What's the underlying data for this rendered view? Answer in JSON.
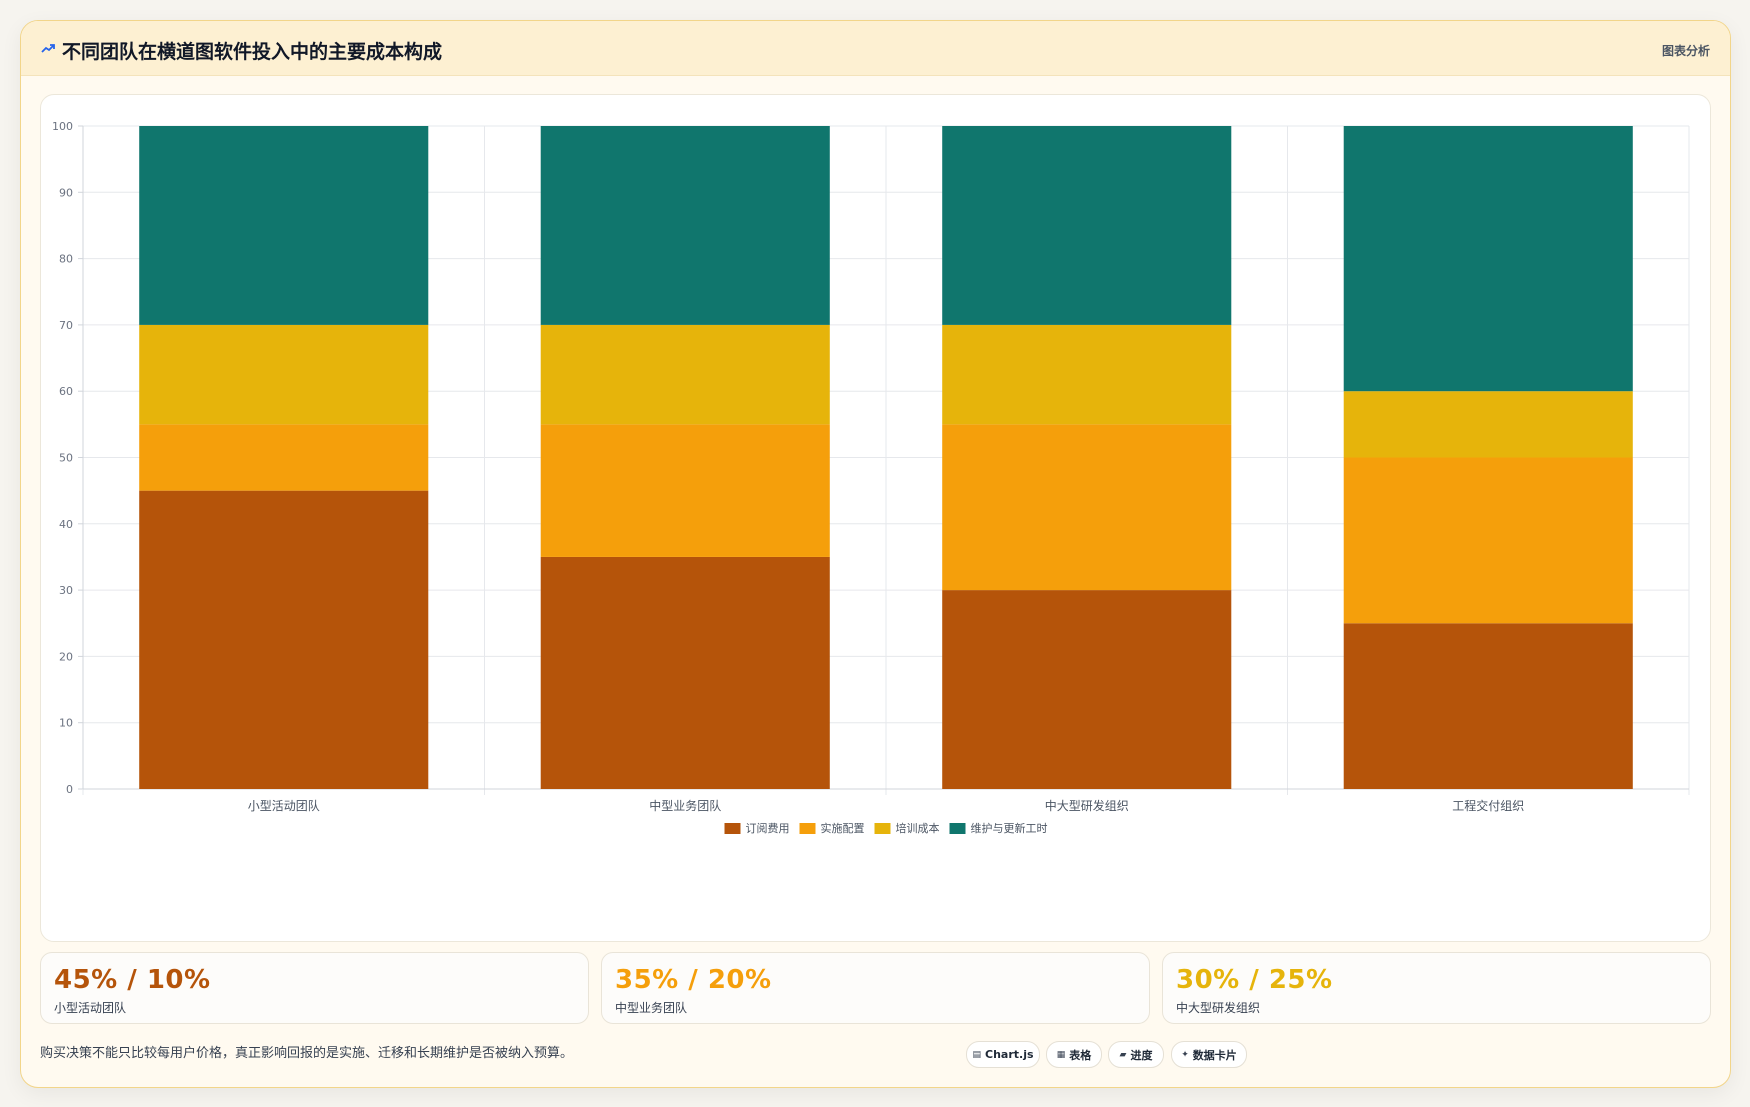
{
  "header": {
    "title": "不同团队在横道图软件投入中的主要成本构成",
    "action_label": "图表分析"
  },
  "chart_data": {
    "type": "bar",
    "stacked": true,
    "categories": [
      "小型活动团队",
      "中型业务团队",
      "中大型研发组织",
      "工程交付组织"
    ],
    "series": [
      {
        "name": "订阅费用",
        "color": "#b5540a",
        "values": [
          45,
          35,
          30,
          25
        ]
      },
      {
        "name": "实施配置",
        "color": "#f59f0b",
        "values": [
          10,
          20,
          25,
          25
        ]
      },
      {
        "name": "培训成本",
        "color": "#e6b40b",
        "values": [
          15,
          15,
          15,
          10
        ]
      },
      {
        "name": "维护与更新工时",
        "color": "#10766d",
        "values": [
          30,
          30,
          30,
          40
        ]
      }
    ],
    "ylim": [
      0,
      100
    ],
    "yticks": [
      0,
      10,
      20,
      30,
      40,
      50,
      60,
      70,
      80,
      90,
      100
    ],
    "grid": true,
    "legend": "bottom"
  },
  "stats": [
    {
      "value": "45% / 10%",
      "label": "小型活动团队",
      "color": "#b5540a"
    },
    {
      "value": "35% / 20%",
      "label": "中型业务团队",
      "color": "#f59f0b"
    },
    {
      "value": "30% / 25%",
      "label": "中大型研发组织",
      "color": "#e6b40b"
    }
  ],
  "footer": {
    "note": "购买决策不能只比较每用户价格，真正影响回报的是实施、迁移和长期维护是否被纳入预算。",
    "chips": [
      {
        "icon": "▤",
        "label": "Chart.js"
      },
      {
        "icon": "▦",
        "label": "表格"
      },
      {
        "icon": "▰",
        "label": "进度"
      },
      {
        "icon": "✦",
        "label": "数据卡片"
      }
    ]
  }
}
